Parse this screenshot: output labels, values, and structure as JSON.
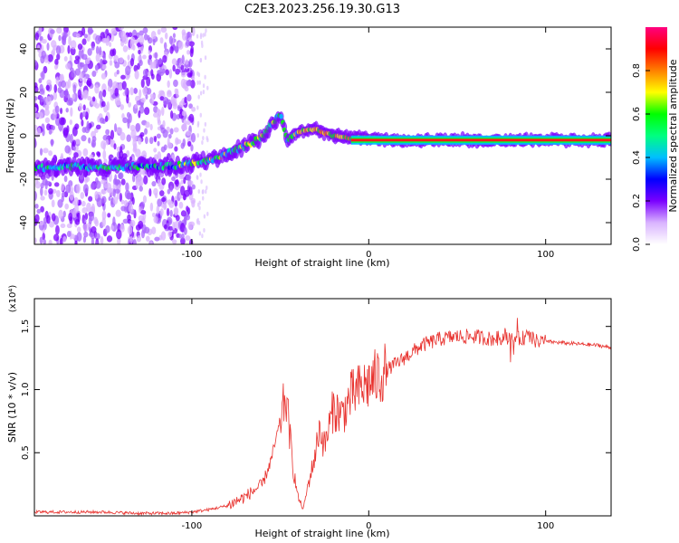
{
  "figure": {
    "title": "C2E3.2023.256.19.30.G13"
  },
  "colors": {
    "snr_line": "#e8332f",
    "frame": "#000000",
    "colorbar_stops": [
      "#ffffff",
      "#d9b3ff",
      "#7a00ff",
      "#0000ff",
      "#00bfff",
      "#00ff80",
      "#00ff00",
      "#ffff00",
      "#ff8000",
      "#ff0000",
      "#ff0080"
    ]
  },
  "chart_data": [
    {
      "type": "heatmap",
      "panel": "spectrogram",
      "xlabel": "Height of straight line (km)",
      "ylabel": "Frequency (Hz)",
      "xlim": [
        -189,
        137
      ],
      "ylim": [
        -50,
        50
      ],
      "xticks": [
        -100,
        0,
        100
      ],
      "yticks": [
        -40,
        -20,
        0,
        20,
        40
      ],
      "colorbar": {
        "label": "Normalized spectral amplitude",
        "range": [
          0,
          1
        ],
        "ticks": [
          "0.0",
          "0.2",
          "0.4",
          "0.6",
          "0.8"
        ]
      },
      "ridge": {
        "x": [
          -189,
          -170,
          -150,
          -130,
          -110,
          -90,
          -70,
          -60,
          -55,
          -50,
          -46,
          -40,
          -30,
          -20,
          -10,
          0,
          20,
          50,
          80,
          100,
          137
        ],
        "y": [
          -15,
          -14,
          -15,
          -14,
          -14,
          -11,
          -5,
          0,
          5,
          10,
          -2,
          2,
          3,
          0,
          -1,
          -1,
          -2,
          -2,
          -2,
          -2,
          -2
        ]
      }
    },
    {
      "type": "line",
      "panel": "snr",
      "xlabel": "Height of straight line (km)",
      "ylabel": "SNR (10 * v/v)",
      "y_multiplier": "(x10⁴)",
      "xlim": [
        -189,
        137
      ],
      "ylim": [
        0,
        1.72
      ],
      "xticks": [
        -100,
        0,
        100
      ],
      "yticks": [
        "0.5",
        "1.0",
        "1.5"
      ],
      "series": [
        {
          "x": [
            -189,
            -170,
            -150,
            -130,
            -110,
            -100,
            -90,
            -80,
            -70,
            -60,
            -55,
            -50,
            -47,
            -45,
            -43,
            -40,
            -37,
            -35,
            -30,
            -28,
            -25,
            -20,
            -15,
            -10,
            -5,
            0,
            5,
            10,
            15,
            20,
            30,
            40,
            50,
            60,
            70,
            80,
            85,
            90,
            95,
            100,
            110,
            120,
            130,
            137
          ],
          "y": [
            0.03,
            0.03,
            0.03,
            0.02,
            0.02,
            0.03,
            0.05,
            0.08,
            0.15,
            0.25,
            0.45,
            0.75,
            0.95,
            0.7,
            0.4,
            0.15,
            0.05,
            0.2,
            0.5,
            0.7,
            0.55,
            0.85,
            0.8,
            0.95,
            1.0,
            1.05,
            1.1,
            1.15,
            1.2,
            1.25,
            1.35,
            1.4,
            1.42,
            1.42,
            1.4,
            1.42,
            1.4,
            1.42,
            1.38,
            1.38,
            1.37,
            1.36,
            1.35,
            1.33
          ]
        }
      ]
    }
  ]
}
